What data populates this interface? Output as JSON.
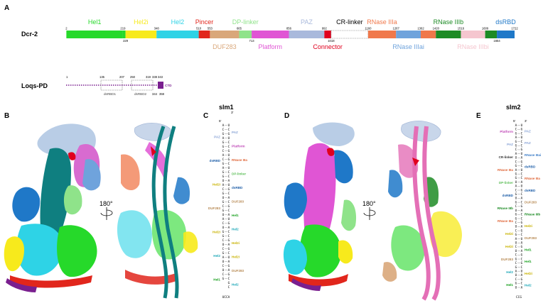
{
  "panels": {
    "A": "A",
    "B": "B",
    "C": "C",
    "D": "D",
    "E": "E"
  },
  "dcr2": {
    "name": "Dcr-2",
    "domains": [
      {
        "label": "Hel1",
        "start": 2,
        "end": 219,
        "color": "#26d92a",
        "label_pos": "top"
      },
      {
        "label": "Hel2i",
        "start": 229,
        "end": 348,
        "color": "#f7ea1c",
        "label_pos": "top"
      },
      {
        "label": "Hel2",
        "start": 348,
        "end": 510,
        "color": "#2ed3e6",
        "label_pos": "top"
      },
      {
        "label": "Pincer",
        "start": 510,
        "end": 553,
        "color": "#e1261c",
        "label_pos": "top"
      },
      {
        "label": "DUF283",
        "start": 553,
        "end": 665,
        "color": "#d9a77a",
        "label_pos": "bottom"
      },
      {
        "label": "DP-linker",
        "start": 665,
        "end": 713,
        "color": "#8fe38a",
        "label_pos": "top"
      },
      {
        "label": "Platform",
        "start": 713,
        "end": 856,
        "color": "#e055d4",
        "label_pos": "bottom"
      },
      {
        "label": "PAZ",
        "start": 856,
        "end": 992,
        "color": "#a9b9dc",
        "label_pos": "top"
      },
      {
        "label": "Connector",
        "start": 992,
        "end": 1018,
        "color": "#e0001e",
        "label_pos": "bottom"
      },
      {
        "label": "CR-linker",
        "start": 1018,
        "end": 1160,
        "color": "#ffffff",
        "label_pos": "top",
        "dashed": true
      },
      {
        "label": "RNase IIIa",
        "start": 1160,
        "end": 1267,
        "color": "#f0784b",
        "label_pos": "top"
      },
      {
        "label": "RNase IIIai",
        "start": 1267,
        "end": 1362,
        "color": "#6fa3dc",
        "label_pos": "bottom"
      },
      {
        "label": "RNase IIIb",
        "start": 1420,
        "end": 1516,
        "color": "#1d8b25",
        "label_pos": "top"
      },
      {
        "label": "RNase IIIbi",
        "start": 1516,
        "end": 1609,
        "color": "#f5c6cf",
        "label_pos": "bottom"
      },
      {
        "label": "dsRBD",
        "start": 1654,
        "end": 1722,
        "color": "#1f78c8",
        "label_pos": "top"
      }
    ],
    "extra_segments": [
      {
        "start": 1362,
        "end": 1420,
        "color": "#f0784b"
      },
      {
        "start": 1609,
        "end": 1654,
        "color": "#1d8b25"
      },
      {
        "start": 219,
        "end": 229,
        "color": "#26d92a"
      }
    ],
    "ticks_top": [
      "2",
      "219",
      "348",
      "510",
      "553",
      "665",
      "856",
      "992",
      "1160",
      "1267",
      "1362",
      "1420",
      "1516",
      "1609",
      "1722"
    ],
    "ticks_bottom": [
      "229",
      "713",
      "1018",
      "1654"
    ]
  },
  "loqs": {
    "name": "Loqs-PD",
    "ticks_top": [
      "1",
      "135",
      "207",
      "250",
      "319",
      "338",
      "343"
    ],
    "ticks_bottom": [
      "344",
      "359"
    ],
    "boxes": [
      {
        "label": "dsRBD1"
      },
      {
        "label": "dsRBD2"
      },
      {
        "label": "CTD"
      }
    ]
  },
  "rotations": {
    "b": "180°",
    "d": "180°"
  },
  "slm1": {
    "title": "slm1",
    "end5": "5'",
    "end3": "3'",
    "left": "ACGAGGCACGAGGUACGUGCGUACUGGCUCGAUCUCG",
    "right": "UCGUCCGUGCUCCAUGCACGCAUGACCGAGCUAGAGCGC",
    "loop": "UCCA",
    "labels_left": [
      {
        "text": "PAZ",
        "color": "#8aa4d6"
      },
      {
        "text": "dsRBD",
        "color": "#1f5fa8"
      },
      {
        "text": "Hel2i",
        "color": "#c8b200"
      },
      {
        "text": "DUF283",
        "color": "#b88b55"
      },
      {
        "text": "Hel2i",
        "color": "#c8b200"
      },
      {
        "text": "Hel2",
        "color": "#1fa8b8"
      },
      {
        "text": "Hel1",
        "color": "#1aa020"
      }
    ],
    "labels_right": [
      {
        "text": "PAZ",
        "color": "#8aa4d6"
      },
      {
        "text": "Platform",
        "color": "#c04ab8"
      },
      {
        "text": "RNase IIIa",
        "color": "#e0693c"
      },
      {
        "text": "DP-linker",
        "color": "#5fbf5a"
      },
      {
        "text": "dsRBD",
        "color": "#1f5fa8"
      },
      {
        "text": "DUF283",
        "color": "#b88b55"
      },
      {
        "text": "Hel1",
        "color": "#1aa020"
      },
      {
        "text": "Hel2",
        "color": "#1fa8b8"
      },
      {
        "text": "Hel2i",
        "color": "#c8b200"
      },
      {
        "text": "Hel2i",
        "color": "#c8b200"
      },
      {
        "text": "DUF283",
        "color": "#b88b55"
      },
      {
        "text": "Hel2",
        "color": "#1fa8b8"
      }
    ]
  },
  "slm2": {
    "title": "slm2",
    "end5": "5'",
    "end3": "3'",
    "left": "ACGAGGCAUCGAGGUACGUGCUGGCUCGAUCUCGCGAUCGU",
    "right": "UGCUCCGUAGCUCCAUGCACGACCGAGCUAGAGCGCUAGCA",
    "loop": "CCG",
    "labels_left": [
      {
        "text": "Platform",
        "color": "#c04ab8"
      },
      {
        "text": "PAZ",
        "color": "#8aa4d6"
      },
      {
        "text": "CR-linker",
        "color": "#333333"
      },
      {
        "text": "RNase IIIa",
        "color": "#e0693c"
      },
      {
        "text": "DP-linker",
        "color": "#5fbf5a"
      },
      {
        "text": "dsRBD",
        "color": "#1f5fa8"
      },
      {
        "text": "RNase IIIb",
        "color": "#1d8b25"
      },
      {
        "text": "RNase IIIa",
        "color": "#e0693c"
      },
      {
        "text": "Hel2i",
        "color": "#c8b200"
      },
      {
        "text": "Hel2i",
        "color": "#c8b200"
      },
      {
        "text": "DUF283",
        "color": "#b88b55"
      },
      {
        "text": "Hel2",
        "color": "#1fa8b8"
      },
      {
        "text": "Hel1",
        "color": "#1aa020"
      }
    ],
    "labels_right": [
      {
        "text": "PAZ",
        "color": "#8aa4d6"
      },
      {
        "text": "PAZ",
        "color": "#8aa4d6"
      },
      {
        "text": "RNase IIIai",
        "color": "#3f7fc8"
      },
      {
        "text": "dsRBD",
        "color": "#1f5fa8"
      },
      {
        "text": "RNase IIIa",
        "color": "#e0693c"
      },
      {
        "text": "dsRBD",
        "color": "#1f5fa8"
      },
      {
        "text": "DUF283",
        "color": "#b88b55"
      },
      {
        "text": "RNase IIIb",
        "color": "#1d8b25"
      },
      {
        "text": "Hel2i",
        "color": "#c8b200"
      },
      {
        "text": "DUF283",
        "color": "#b88b55"
      },
      {
        "text": "Hel1",
        "color": "#1aa020"
      },
      {
        "text": "Hel1",
        "color": "#1aa020"
      },
      {
        "text": "Hel2i",
        "color": "#c8b200"
      },
      {
        "text": "Hel2",
        "color": "#1fa8b8"
      }
    ]
  },
  "colors": {
    "hel1": "#26d92a",
    "hel2i": "#f7ea1c",
    "hel2": "#2ed3e6",
    "pincer": "#e1261c",
    "duf283": "#d9a77a",
    "dplinker": "#8fe38a",
    "platform": "#e055d4",
    "paz": "#a9b9dc",
    "connector": "#e0001e",
    "rnase3a": "#f0784b",
    "rnase3ai": "#6fa3dc",
    "rnase3b": "#1d8b25",
    "rnase3bi": "#f5c6cf",
    "dsrbd": "#1f78c8",
    "teal": "#0f7f80",
    "loqs": "#7a1f8f",
    "rnapink": "#e46fb6"
  }
}
